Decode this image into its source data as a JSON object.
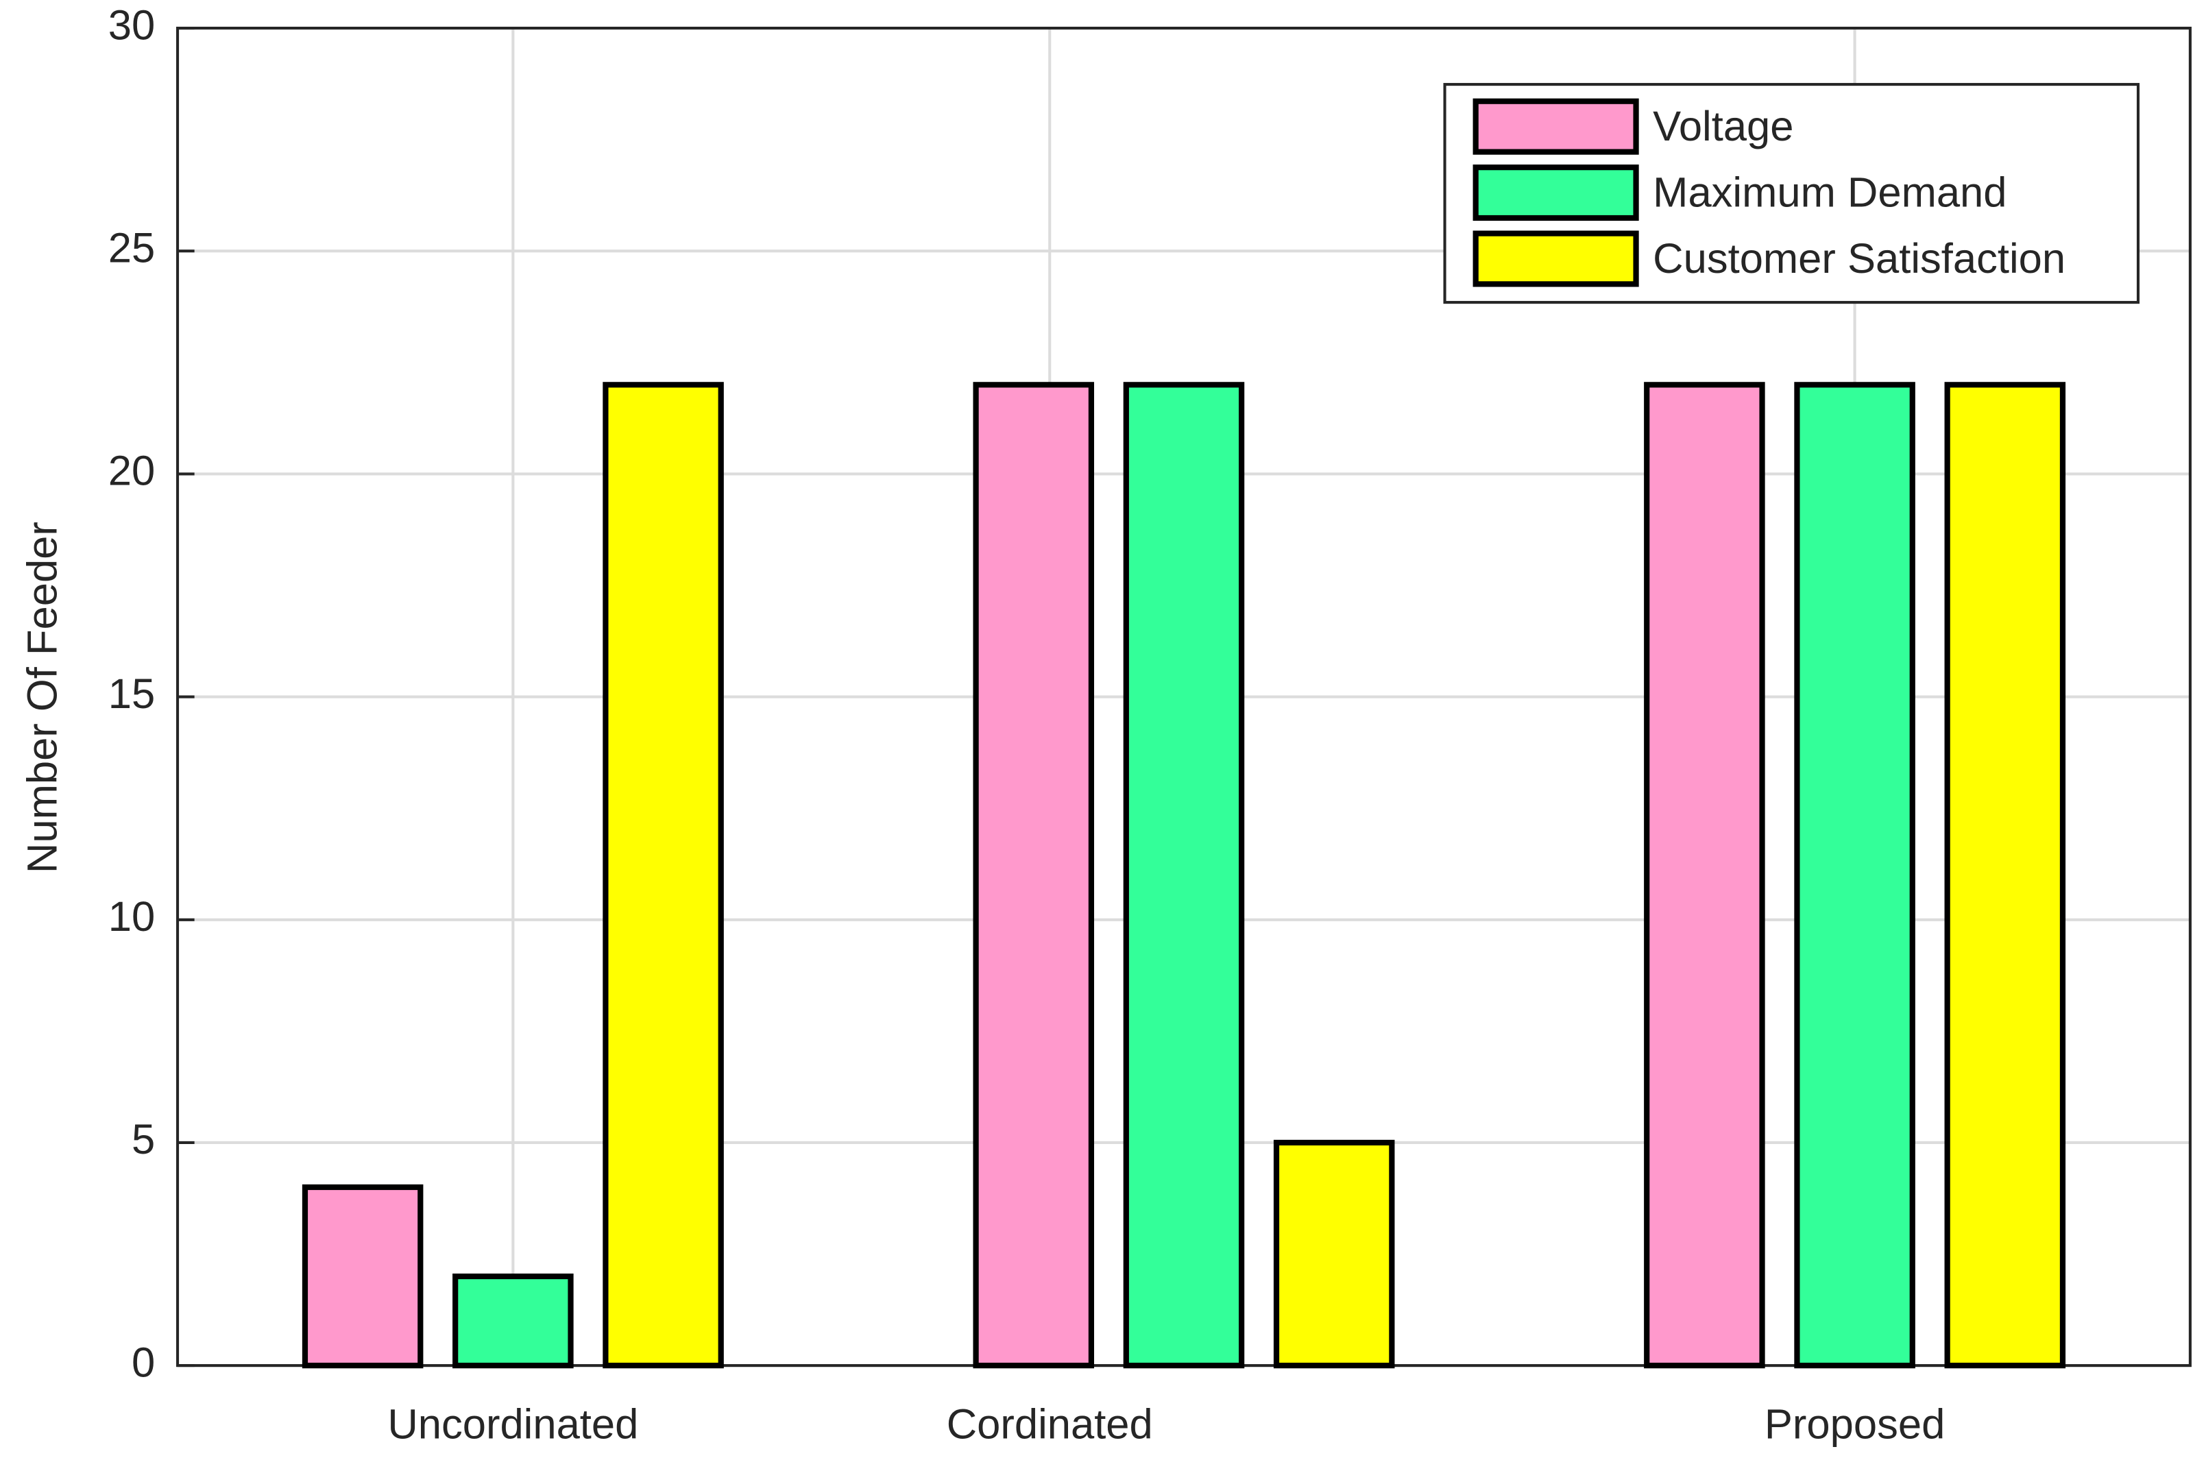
{
  "chart_data": {
    "type": "bar",
    "y_label": "Number Of Feeder",
    "x": [
      1,
      2.25,
      3.5
    ],
    "xlim": [
      0.375,
      4.125
    ],
    "xticks": [
      {
        "value": 1,
        "label": "Uncordinated"
      },
      {
        "value": 2,
        "label": "Cordinated"
      },
      {
        "value": 3.5,
        "label": "Proposed"
      }
    ],
    "ylim": [
      0,
      30
    ],
    "yticks": [
      0,
      5,
      10,
      15,
      20,
      25,
      30
    ],
    "grid": true,
    "legend": "upper right",
    "series": [
      {
        "name": "Voltage",
        "color": "#ff99cc",
        "values": [
          4,
          22,
          22
        ]
      },
      {
        "name": "Maximum Demand",
        "color": "#33ff99",
        "values": [
          2,
          22,
          22
        ]
      },
      {
        "name": "Customer Satisfaction",
        "color": "#ffff00",
        "values": [
          22,
          5,
          22
        ]
      }
    ]
  }
}
